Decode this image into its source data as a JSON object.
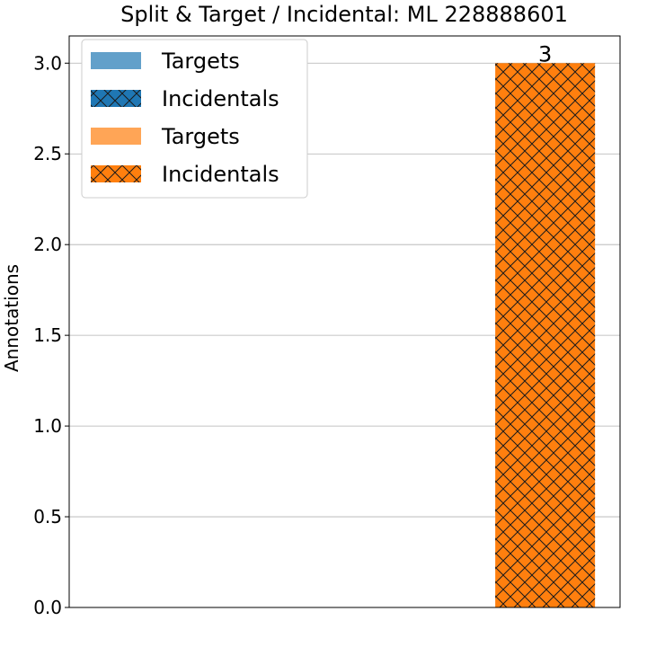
{
  "chart_data": {
    "type": "bar",
    "title": "Split & Target / Incidental: ML 228888601",
    "xlabel": "",
    "ylabel": "Annotations",
    "ylim": [
      0,
      3.15
    ],
    "yticks": [
      "0.0",
      "0.5",
      "1.0",
      "1.5",
      "2.0",
      "2.5",
      "3.0"
    ],
    "grid": "y",
    "legend_position": "top-left",
    "categories": [
      "",
      ""
    ],
    "series": [
      {
        "name": "Targets",
        "color": "#1f77b4",
        "alpha": 0.7,
        "hatch": false,
        "values": [
          0,
          0
        ]
      },
      {
        "name": "Incidentals",
        "color": "#1f77b4",
        "alpha": 1.0,
        "hatch": true,
        "values": [
          0,
          0
        ]
      },
      {
        "name": "Targets",
        "color": "#ff7f0e",
        "alpha": 0.7,
        "hatch": false,
        "values": [
          0,
          0
        ]
      },
      {
        "name": "Incidentals",
        "color": "#ff7f0e",
        "alpha": 1.0,
        "hatch": true,
        "values": [
          0,
          3
        ]
      }
    ],
    "bar_labels": [
      {
        "category_index": 1,
        "text": "3"
      }
    ]
  }
}
